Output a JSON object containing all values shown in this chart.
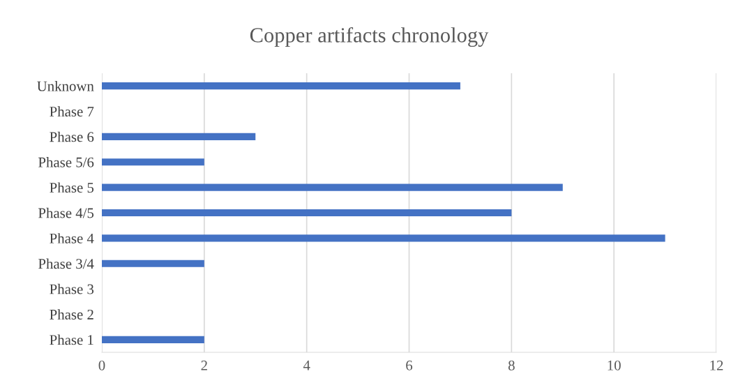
{
  "chart_data": {
    "type": "bar",
    "orientation": "horizontal",
    "title": "Copper artifacts chronology",
    "categories": [
      "Unknown",
      "Phase 7",
      "Phase 6",
      "Phase 5/6",
      "Phase 5",
      "Phase 4/5",
      "Phase 4",
      "Phase 3/4",
      "Phase 3",
      "Phase 2",
      "Phase 1"
    ],
    "values": [
      7,
      0,
      3,
      2,
      9,
      8,
      11,
      2,
      0,
      0,
      2
    ],
    "color": "#4472c4",
    "xlim": [
      0,
      12
    ],
    "xticks": [
      0,
      2,
      4,
      6,
      8,
      10,
      12
    ],
    "grid": "x",
    "legend": false
  }
}
